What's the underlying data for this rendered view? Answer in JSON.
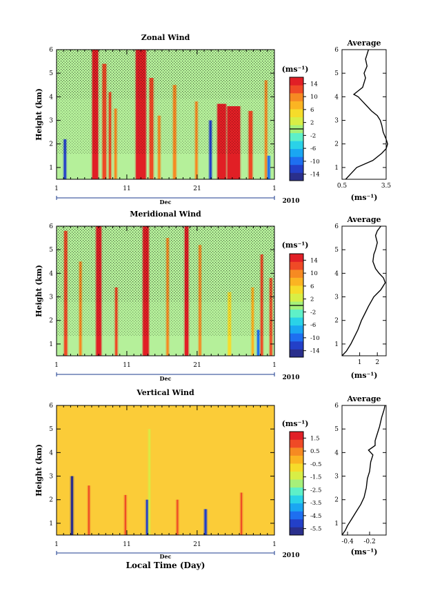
{
  "figure": {
    "xlabel": "Local Time (Day)",
    "month_label": "Dec",
    "year_label": "2010",
    "x_ticks": [
      "1",
      "11",
      "21",
      "1"
    ]
  },
  "chart_data": [
    {
      "type": "heatmap",
      "title": "Zonal Wind",
      "ylabel": "Height (km)",
      "units_label": "(ms⁻¹)",
      "xlim": [
        1,
        32
      ],
      "ylim": [
        0.5,
        6
      ],
      "y_ticks": [
        "1",
        "2",
        "3",
        "4",
        "5",
        "6"
      ],
      "colorbar_ticks": [
        "14",
        "10",
        "6",
        "2",
        "-2",
        "-6",
        "-10",
        "-14"
      ],
      "colorbar_range": [
        -16,
        16
      ],
      "marked_level": 0,
      "features": [
        {
          "day": 6.5,
          "w": 0.8,
          "top": 6.0,
          "value": 14
        },
        {
          "day": 7.8,
          "w": 0.5,
          "top": 5.4,
          "value": 13
        },
        {
          "day": 8.6,
          "w": 0.3,
          "top": 4.2,
          "value": 12
        },
        {
          "day": 9.4,
          "w": 0.3,
          "top": 3.5,
          "value": 9
        },
        {
          "day": 13.0,
          "w": 1.4,
          "top": 6.0,
          "value": 15
        },
        {
          "day": 14.5,
          "w": 0.5,
          "top": 4.8,
          "value": 13
        },
        {
          "day": 15.6,
          "w": 0.3,
          "top": 3.2,
          "value": 11
        },
        {
          "day": 17.8,
          "w": 0.4,
          "top": 4.5,
          "value": 9
        },
        {
          "day": 20.9,
          "w": 0.3,
          "top": 3.8,
          "value": 11
        },
        {
          "day": 24.5,
          "w": 1.2,
          "top": 3.7,
          "value": 14
        },
        {
          "day": 26.2,
          "w": 1.8,
          "top": 3.6,
          "value": 15
        },
        {
          "day": 28.6,
          "w": 0.5,
          "top": 3.4,
          "value": 12
        },
        {
          "day": 30.8,
          "w": 0.3,
          "top": 4.7,
          "value": 11
        },
        {
          "day": 2.2,
          "w": 0.3,
          "top": 2.2,
          "value": -12
        },
        {
          "day": 22.9,
          "w": 0.3,
          "top": 3.0,
          "value": -13
        },
        {
          "day": 31.2,
          "w": 0.3,
          "top": 1.5,
          "value": -11
        }
      ],
      "profile": {
        "title": "Average",
        "xlabel": "(ms⁻¹)",
        "xlim": [
          0.5,
          3.5
        ],
        "x_ticks": [
          0.5,
          3.5
        ],
        "y": [
          0.5,
          0.7,
          1.0,
          1.3,
          1.6,
          1.8,
          2.0,
          2.2,
          2.5,
          2.8,
          3.0,
          3.2,
          3.4,
          3.6,
          3.8,
          4.0,
          4.1,
          4.2,
          4.4,
          4.6,
          4.8,
          5.0,
          5.3,
          5.6,
          5.8,
          6.0
        ],
        "x": [
          0.75,
          1.05,
          1.5,
          2.6,
          3.2,
          3.5,
          3.6,
          3.5,
          3.3,
          3.2,
          3.1,
          2.9,
          2.5,
          2.2,
          1.9,
          1.6,
          1.3,
          1.5,
          1.9,
          2.0,
          2.1,
          2.0,
          2.2,
          2.1,
          2.2,
          2.3
        ]
      }
    },
    {
      "type": "heatmap",
      "title": "Meridional Wind",
      "ylabel": "Height (km)",
      "units_label": "(ms⁻¹)",
      "xlim": [
        1,
        32
      ],
      "ylim": [
        0.5,
        6
      ],
      "y_ticks": [
        "1",
        "2",
        "3",
        "4",
        "5",
        "6"
      ],
      "colorbar_ticks": [
        "14",
        "10",
        "6",
        "2",
        "-2",
        "-6",
        "-10",
        "-14"
      ],
      "colorbar_range": [
        -16,
        16
      ],
      "marked_level": 0,
      "features": [
        {
          "day": 2.3,
          "w": 0.4,
          "top": 5.8,
          "value": 13
        },
        {
          "day": 4.4,
          "w": 0.3,
          "top": 4.5,
          "value": 11
        },
        {
          "day": 7.0,
          "w": 0.7,
          "top": 6.0,
          "value": 15
        },
        {
          "day": 9.5,
          "w": 0.3,
          "top": 3.4,
          "value": 12
        },
        {
          "day": 13.7,
          "w": 0.8,
          "top": 6.0,
          "value": 15
        },
        {
          "day": 16.8,
          "w": 0.3,
          "top": 5.5,
          "value": 11
        },
        {
          "day": 19.5,
          "w": 0.5,
          "top": 6.0,
          "value": 15
        },
        {
          "day": 21.4,
          "w": 0.3,
          "top": 5.2,
          "value": 10
        },
        {
          "day": 25.6,
          "w": 0.4,
          "top": 3.2,
          "value": 6
        },
        {
          "day": 28.9,
          "w": 0.3,
          "top": 3.4,
          "value": 8
        },
        {
          "day": 30.2,
          "w": 0.3,
          "top": 4.8,
          "value": 12
        },
        {
          "day": 31.5,
          "w": 0.3,
          "top": 3.8,
          "value": 12
        },
        {
          "day": 29.7,
          "w": 0.3,
          "top": 1.6,
          "value": -11
        }
      ],
      "profile": {
        "title": "Average",
        "xlabel": "(ms⁻¹)",
        "xlim": [
          0.0,
          2.5
        ],
        "x_ticks": [
          1,
          2
        ],
        "y": [
          0.5,
          0.7,
          1.0,
          1.3,
          1.6,
          2.0,
          2.3,
          2.6,
          3.0,
          3.3,
          3.6,
          3.8,
          4.0,
          4.2,
          4.5,
          4.8,
          5.0,
          5.3,
          5.6,
          5.8,
          6.0
        ],
        "x": [
          0.0,
          0.25,
          0.5,
          0.7,
          0.9,
          1.1,
          1.3,
          1.5,
          1.8,
          2.2,
          2.45,
          2.35,
          2.1,
          1.9,
          1.75,
          1.8,
          1.9,
          2.0,
          1.9,
          2.0,
          2.2
        ]
      }
    },
    {
      "type": "heatmap",
      "title": "Vertical Wind",
      "ylabel": "Height (km)",
      "units_label": "(ms⁻¹)",
      "xlim": [
        1,
        32
      ],
      "ylim": [
        0.5,
        6
      ],
      "y_ticks": [
        "1",
        "2",
        "3",
        "4",
        "5",
        "6"
      ],
      "colorbar_ticks": [
        "1.5",
        "0.5",
        "-0.5",
        "-1.5",
        "-2.5",
        "-3.5",
        "-4.5",
        "-5.5"
      ],
      "colorbar_range": [
        -6,
        2
      ],
      "features": [
        {
          "day": 3.2,
          "w": 0.3,
          "top": 3.0,
          "value": -5.5
        },
        {
          "day": 13.9,
          "w": 0.3,
          "top": 2.0,
          "value": -5.3
        },
        {
          "day": 22.2,
          "w": 0.3,
          "top": 1.6,
          "value": -5.0
        },
        {
          "day": 14.2,
          "w": 0.2,
          "top": 5.0,
          "value": -1.5
        },
        {
          "day": 5.6,
          "w": 0.2,
          "top": 2.6,
          "value": 1.3
        },
        {
          "day": 10.8,
          "w": 0.2,
          "top": 2.2,
          "value": 1.2
        },
        {
          "day": 18.2,
          "w": 0.2,
          "top": 2.0,
          "value": 1.3
        },
        {
          "day": 27.3,
          "w": 0.2,
          "top": 2.3,
          "value": 1.2
        }
      ],
      "profile": {
        "title": "Average",
        "xlabel": "(ms⁻¹)",
        "xlim": [
          -0.45,
          -0.05
        ],
        "x_ticks": [
          -0.4,
          -0.2
        ],
        "y": [
          0.5,
          0.7,
          0.9,
          1.2,
          1.5,
          1.8,
          2.1,
          2.5,
          2.9,
          3.2,
          3.6,
          3.9,
          4.1,
          4.3,
          4.5,
          4.8,
          5.1,
          5.5,
          5.8,
          6.0
        ],
        "x": [
          -0.45,
          -0.42,
          -0.4,
          -0.36,
          -0.32,
          -0.28,
          -0.25,
          -0.23,
          -0.22,
          -0.2,
          -0.19,
          -0.17,
          -0.21,
          -0.15,
          -0.15,
          -0.13,
          -0.11,
          -0.09,
          -0.07,
          -0.06
        ]
      }
    }
  ]
}
